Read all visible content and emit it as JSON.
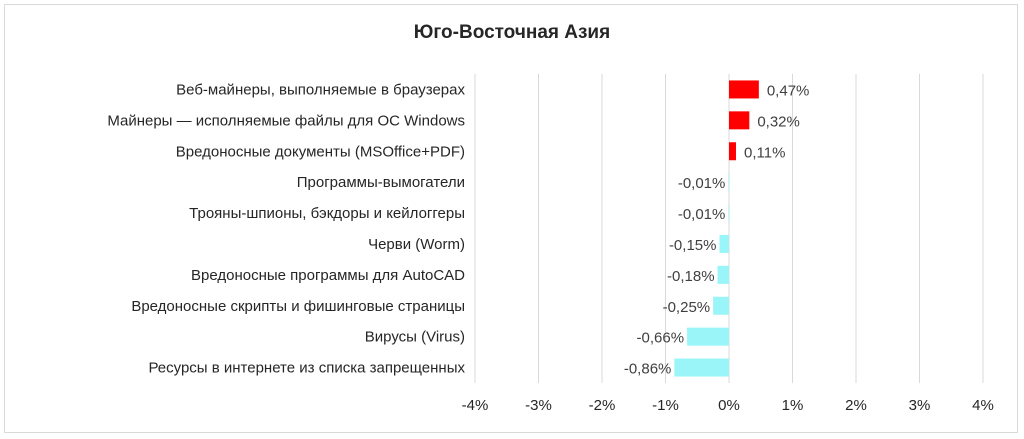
{
  "chart_data": {
    "type": "bar",
    "orientation": "horizontal",
    "title": "Юго-Восточная Азия",
    "categories": [
      "Веб-майнеры, выполняемые в браузерах",
      "Майнеры — исполняемые файлы для ОС Windows",
      "Вредоносные документы (MSOffice+PDF)",
      "Программы-вымогатели",
      "Трояны-шпионы, бэкдоры и кейлоггеры",
      "Черви (Worm)",
      "Вредоносные программы для AutoCAD",
      "Вредоносные скрипты и фишинговые страницы",
      "Вирусы (Virus)",
      "Ресурсы в интернете из списка запрещенных"
    ],
    "values": [
      0.47,
      0.32,
      0.11,
      -0.01,
      -0.01,
      -0.15,
      -0.18,
      -0.25,
      -0.66,
      -0.86
    ],
    "value_labels": [
      "0,47%",
      "0,32%",
      "0,11%",
      "-0,01%",
      "-0,01%",
      "-0,15%",
      "-0,18%",
      "-0,25%",
      "-0,66%",
      "-0,86%"
    ],
    "xlim": [
      -4,
      4
    ],
    "x_ticks": [
      -4,
      -3,
      -2,
      -1,
      0,
      1,
      2,
      3,
      4
    ],
    "x_tick_labels": [
      "-4%",
      "-3%",
      "-2%",
      "-1%",
      "0%",
      "1%",
      "2%",
      "3%",
      "4%"
    ],
    "grid": "vertical",
    "legend": "none",
    "colors": {
      "positive": "#ff0000",
      "negative": "#99f5f7",
      "grid": "#d9d9d9"
    }
  }
}
